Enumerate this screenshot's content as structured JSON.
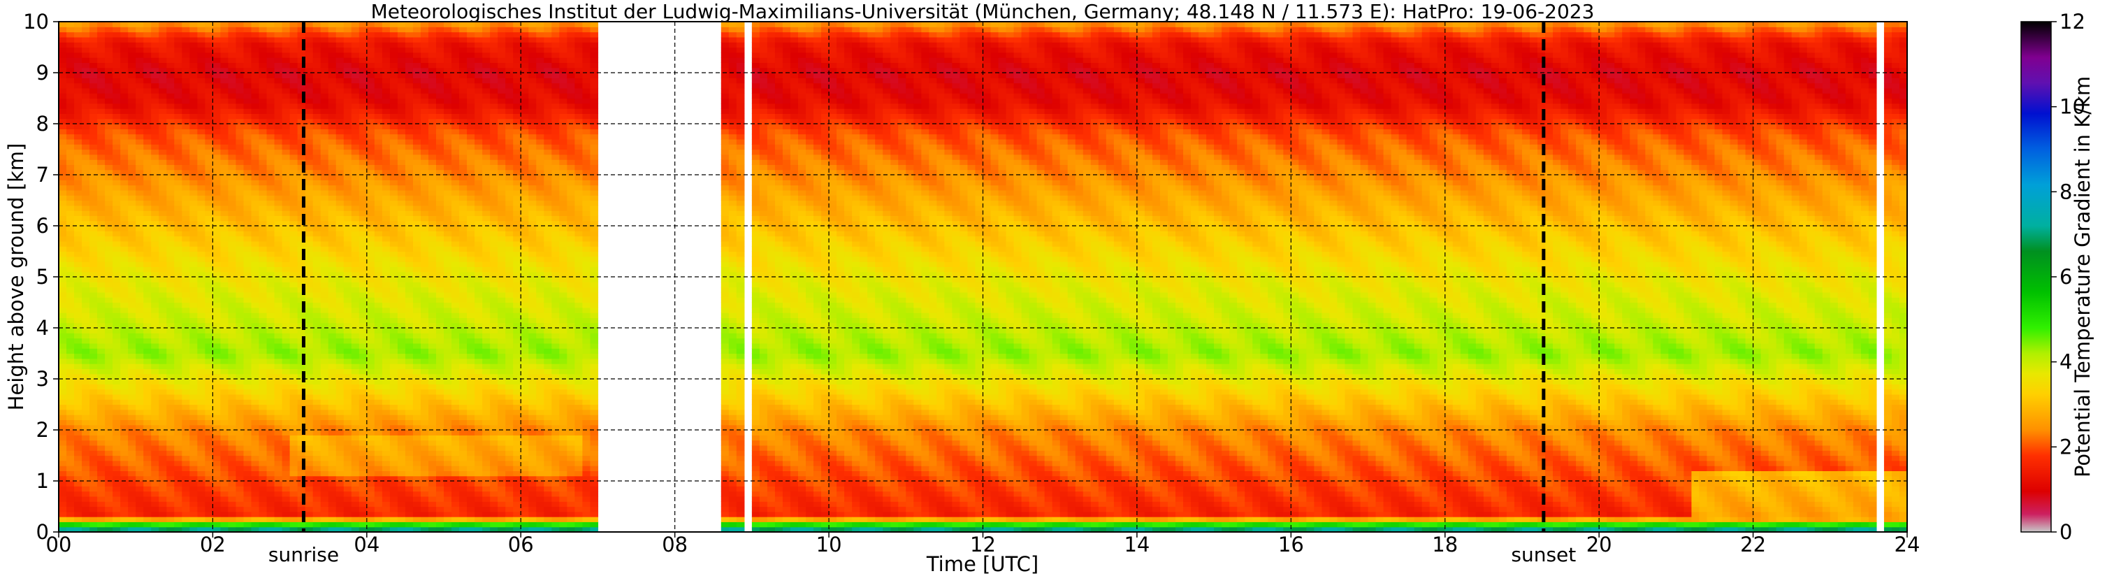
{
  "chart_data": {
    "type": "heatmap",
    "title": "Meteorologisches Institut der Ludwig-Maximilians-Universität (München, Germany; 48.148 N / 11.573 E):    HatPro: 19-06-2023",
    "xlabel": "Time [UTC]",
    "ylabel": "Height above ground [km]",
    "xlim": [
      0,
      24
    ],
    "ylim": [
      0,
      10
    ],
    "x_ticks": [
      "00",
      "02",
      "04",
      "06",
      "08",
      "10",
      "12",
      "14",
      "16",
      "18",
      "20",
      "22",
      "24"
    ],
    "y_ticks": [
      "0",
      "1",
      "2",
      "3",
      "4",
      "5",
      "6",
      "7",
      "8",
      "9",
      "10"
    ],
    "grid": true,
    "colorbar": {
      "label": "Potential Temperature Gradient in K/km",
      "range": [
        0,
        12
      ],
      "ticks": [
        "0",
        "2",
        "4",
        "6",
        "8",
        "10",
        "12"
      ]
    },
    "missing_data_hours": [
      [
        7.0,
        8.6
      ],
      [
        8.85,
        8.95
      ],
      [
        23.65,
        23.72
      ]
    ],
    "events": [
      {
        "label": "sunrise",
        "hour": 3.18
      },
      {
        "label": "sunset",
        "hour": 19.28
      }
    ],
    "profile": [
      {
        "height_km": 0.0,
        "gradient": 8.0
      },
      {
        "height_km": 0.15,
        "gradient": 5.0
      },
      {
        "height_km": 0.3,
        "gradient": 1.6
      },
      {
        "height_km": 1.0,
        "gradient": 1.9
      },
      {
        "height_km": 2.0,
        "gradient": 2.4
      },
      {
        "height_km": 3.0,
        "gradient": 3.6
      },
      {
        "height_km": 3.5,
        "gradient": 4.3
      },
      {
        "height_km": 4.0,
        "gradient": 4.0
      },
      {
        "height_km": 5.0,
        "gradient": 3.6
      },
      {
        "height_km": 6.0,
        "gradient": 3.0
      },
      {
        "height_km": 7.0,
        "gradient": 2.4
      },
      {
        "height_km": 7.8,
        "gradient": 2.0
      },
      {
        "height_km": 8.4,
        "gradient": 1.2
      },
      {
        "height_km": 9.0,
        "gradient": 1.0
      },
      {
        "height_km": 9.6,
        "gradient": 1.4
      },
      {
        "height_km": 10.0,
        "gradient": 2.6
      }
    ]
  }
}
